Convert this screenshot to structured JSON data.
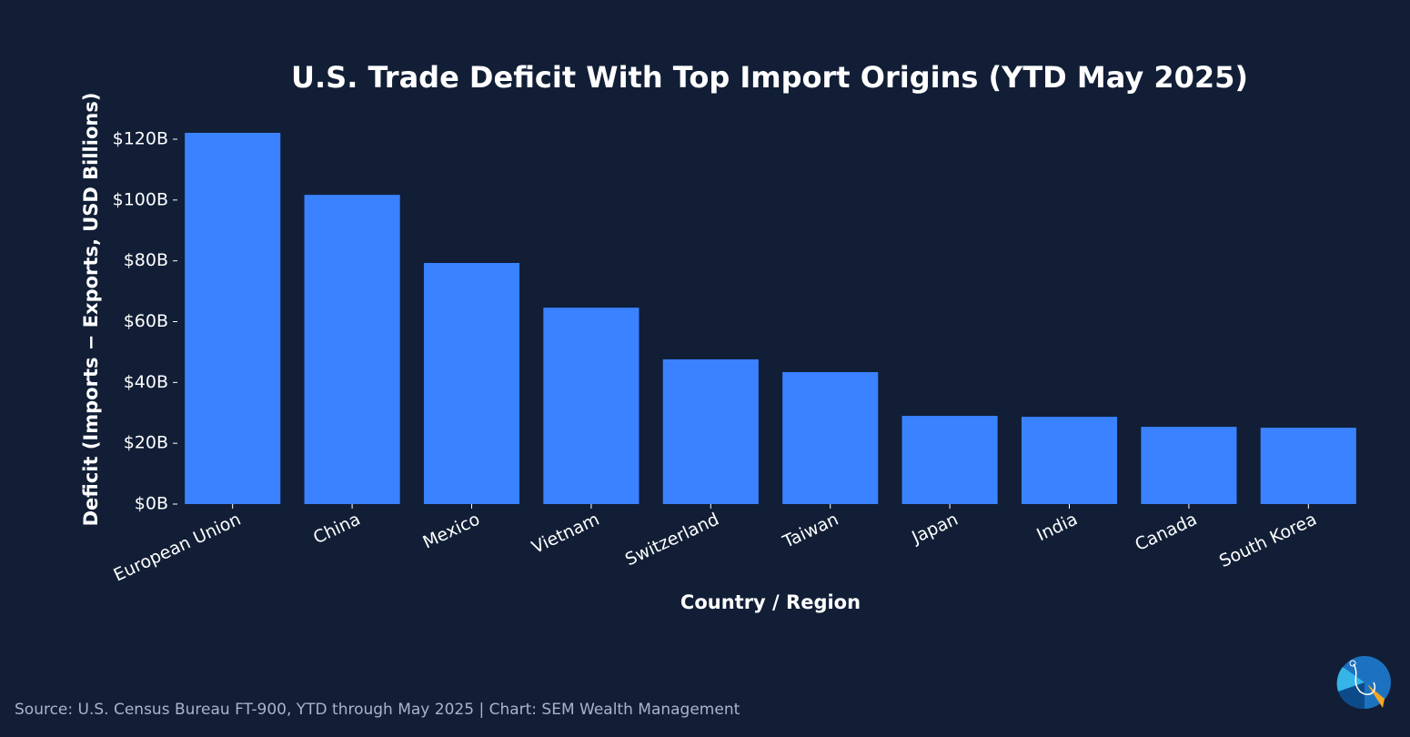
{
  "chart_data": {
    "type": "bar",
    "title": "U.S. Trade Deficit With Top Import Origins (YTD May 2025)",
    "x_label": "Country / Region",
    "y_label": "Deficit (Imports − Exports, USD Billions)",
    "categories": [
      "European Union",
      "China",
      "Mexico",
      "Vietnam",
      "Switzerland",
      "Taiwan",
      "Japan",
      "India",
      "Canada",
      "South Korea"
    ],
    "values": [
      122.1,
      101.7,
      79.3,
      64.6,
      47.6,
      43.4,
      29.0,
      28.7,
      25.4,
      25.1
    ],
    "color": "#3a82ff",
    "ylim": [
      0,
      128.2
    ],
    "yticks": [
      {
        "value": 0,
        "label": "$0B"
      },
      {
        "value": 20,
        "label": "$20B"
      },
      {
        "value": 40,
        "label": "$40B"
      },
      {
        "value": 60,
        "label": "$60B"
      },
      {
        "value": 80,
        "label": "$80B"
      },
      {
        "value": 100,
        "label": "$100B"
      },
      {
        "value": 120,
        "label": "$120B"
      }
    ],
    "grid": false,
    "source": "Source: U.S. Census Bureau FT-900, YTD through May 2025 | Chart: SEM Wealth Management"
  }
}
